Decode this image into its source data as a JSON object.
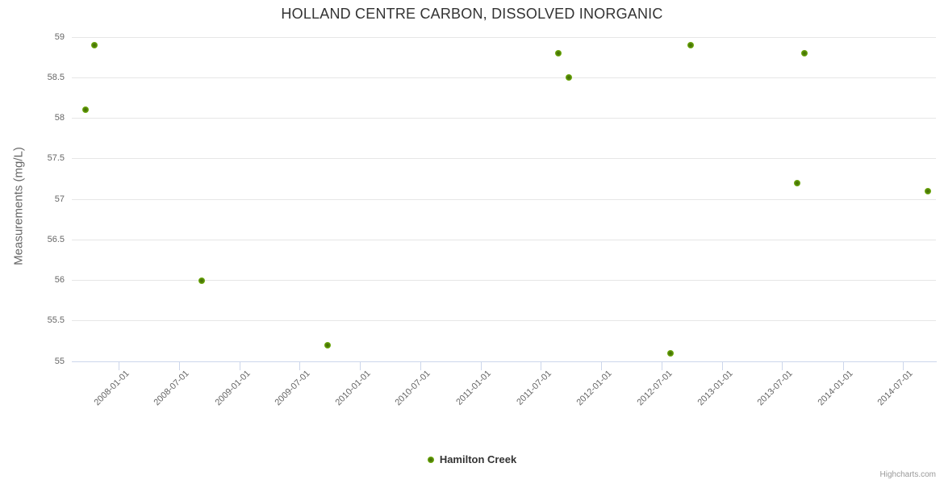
{
  "chart": {
    "credit": "Highcharts.com"
  },
  "colors": {
    "series_green": "#6fae08",
    "grid": "#e6e6e6",
    "axis": "#ccd6eb",
    "title_text": "#333333",
    "label_text": "#666666",
    "credit_text": "#999999"
  },
  "chart_data": {
    "type": "scatter",
    "title": "HOLLAND CENTRE CARBON, DISSOLVED INORGANIC",
    "xlabel": "",
    "ylabel": "Measurements (mg/L)",
    "grid": true,
    "legend_position": "bottom-center",
    "x_axis": {
      "type": "datetime",
      "min": "2007-08-12",
      "max": "2014-10-10",
      "tick_labels": [
        "2008-01-01",
        "2008-07-01",
        "2009-01-01",
        "2009-07-01",
        "2010-01-01",
        "2010-07-01",
        "2011-01-01",
        "2011-07-01",
        "2012-01-01",
        "2012-07-01",
        "2013-01-01",
        "2013-07-01",
        "2014-01-01",
        "2014-07-01"
      ]
    },
    "y_axis": {
      "min": 55,
      "max": 59,
      "tick_interval": 0.5,
      "tick_labels": [
        "55",
        "55.5",
        "56",
        "56.5",
        "57",
        "57.5",
        "58",
        "58.5",
        "59"
      ]
    },
    "series": [
      {
        "name": "Hamilton Creek",
        "color": "#6fae08",
        "points": [
          {
            "date": "2007-09-22",
            "value": 58.1
          },
          {
            "date": "2007-10-20",
            "value": 58.9
          },
          {
            "date": "2008-09-09",
            "value": 56.0
          },
          {
            "date": "2009-09-24",
            "value": 55.2
          },
          {
            "date": "2011-08-25",
            "value": 58.8
          },
          {
            "date": "2011-09-24",
            "value": 58.5
          },
          {
            "date": "2012-07-29",
            "value": 55.1
          },
          {
            "date": "2012-09-28",
            "value": 58.9
          },
          {
            "date": "2013-08-16",
            "value": 57.2
          },
          {
            "date": "2013-09-07",
            "value": 58.8
          },
          {
            "date": "2014-09-15",
            "value": 57.1
          }
        ]
      }
    ]
  }
}
